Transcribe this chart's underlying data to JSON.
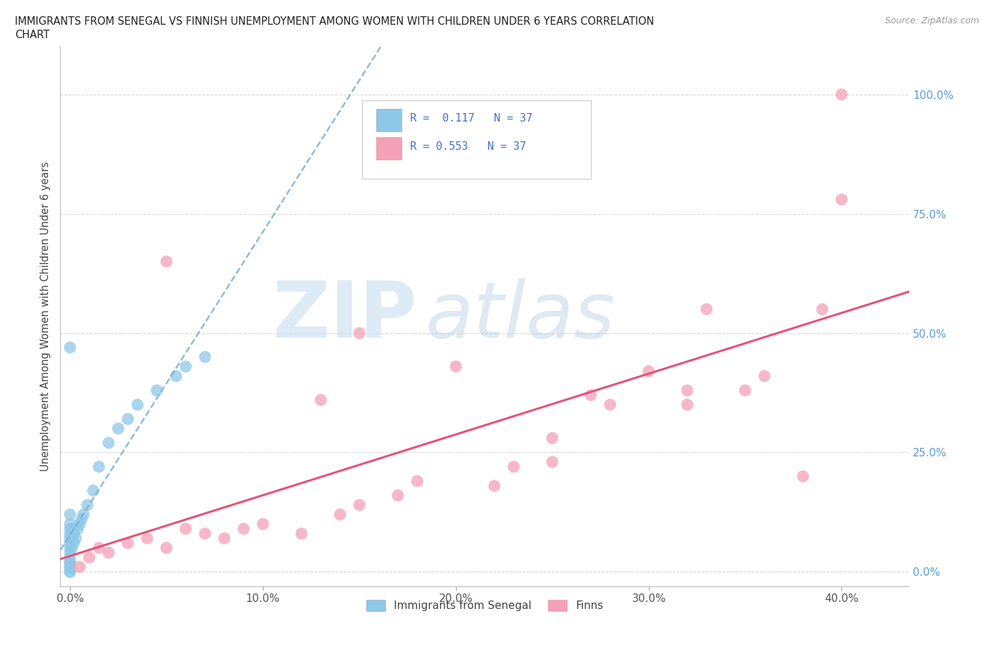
{
  "title_line1": "IMMIGRANTS FROM SENEGAL VS FINNISH UNEMPLOYMENT AMONG WOMEN WITH CHILDREN UNDER 6 YEARS CORRELATION",
  "title_line2": "CHART",
  "source": "Source: ZipAtlas.com",
  "ylabel": "Unemployment Among Women with Children Under 6 years",
  "xlabel_ticks": [
    "0.0%",
    "10.0%",
    "20.0%",
    "30.0%",
    "40.0%"
  ],
  "xlabel_vals": [
    0.0,
    0.1,
    0.2,
    0.3,
    0.4
  ],
  "ylabel_ticks": [
    "0.0%",
    "25.0%",
    "50.0%",
    "75.0%",
    "100.0%"
  ],
  "ylabel_vals": [
    0.0,
    0.25,
    0.5,
    0.75,
    1.0
  ],
  "xlim": [
    -0.005,
    0.435
  ],
  "ylim": [
    -0.03,
    1.1
  ],
  "r_blue": 0.117,
  "n_blue": 37,
  "r_pink": 0.553,
  "n_pink": 37,
  "blue_color": "#8ec8e8",
  "pink_color": "#f4a0b8",
  "blue_line_color": "#7ab0d8",
  "pink_line_color": "#e8507a",
  "grid_color": "#d8d8d8",
  "senegal_x": [
    0.0,
    0.0,
    0.0,
    0.0,
    0.0,
    0.0,
    0.0,
    0.0,
    0.0,
    0.0,
    0.0,
    0.0,
    0.0,
    0.0,
    0.0,
    0.001,
    0.001,
    0.001,
    0.002,
    0.002,
    0.003,
    0.004,
    0.005,
    0.006,
    0.007,
    0.009,
    0.012,
    0.015,
    0.02,
    0.025,
    0.03,
    0.035,
    0.045,
    0.055,
    0.06,
    0.07,
    0.0
  ],
  "senegal_y": [
    0.0,
    0.0,
    0.01,
    0.01,
    0.02,
    0.02,
    0.03,
    0.04,
    0.05,
    0.06,
    0.07,
    0.08,
    0.09,
    0.1,
    0.12,
    0.05,
    0.07,
    0.09,
    0.06,
    0.08,
    0.07,
    0.09,
    0.1,
    0.11,
    0.12,
    0.14,
    0.17,
    0.22,
    0.27,
    0.3,
    0.32,
    0.35,
    0.38,
    0.41,
    0.43,
    0.45,
    0.47
  ],
  "finns_x": [
    0.005,
    0.01,
    0.015,
    0.02,
    0.03,
    0.04,
    0.05,
    0.06,
    0.07,
    0.08,
    0.09,
    0.1,
    0.12,
    0.13,
    0.14,
    0.15,
    0.17,
    0.18,
    0.2,
    0.22,
    0.23,
    0.25,
    0.27,
    0.28,
    0.3,
    0.32,
    0.32,
    0.33,
    0.35,
    0.36,
    0.38,
    0.39,
    0.4,
    0.4,
    0.05,
    0.15,
    0.25
  ],
  "finns_y": [
    0.01,
    0.03,
    0.05,
    0.04,
    0.06,
    0.07,
    0.05,
    0.09,
    0.08,
    0.07,
    0.09,
    0.1,
    0.08,
    0.36,
    0.12,
    0.14,
    0.16,
    0.19,
    0.43,
    0.18,
    0.22,
    0.28,
    0.37,
    0.35,
    0.42,
    0.35,
    0.38,
    0.55,
    0.38,
    0.41,
    0.2,
    0.55,
    0.78,
    1.0,
    0.65,
    0.5,
    0.23
  ]
}
